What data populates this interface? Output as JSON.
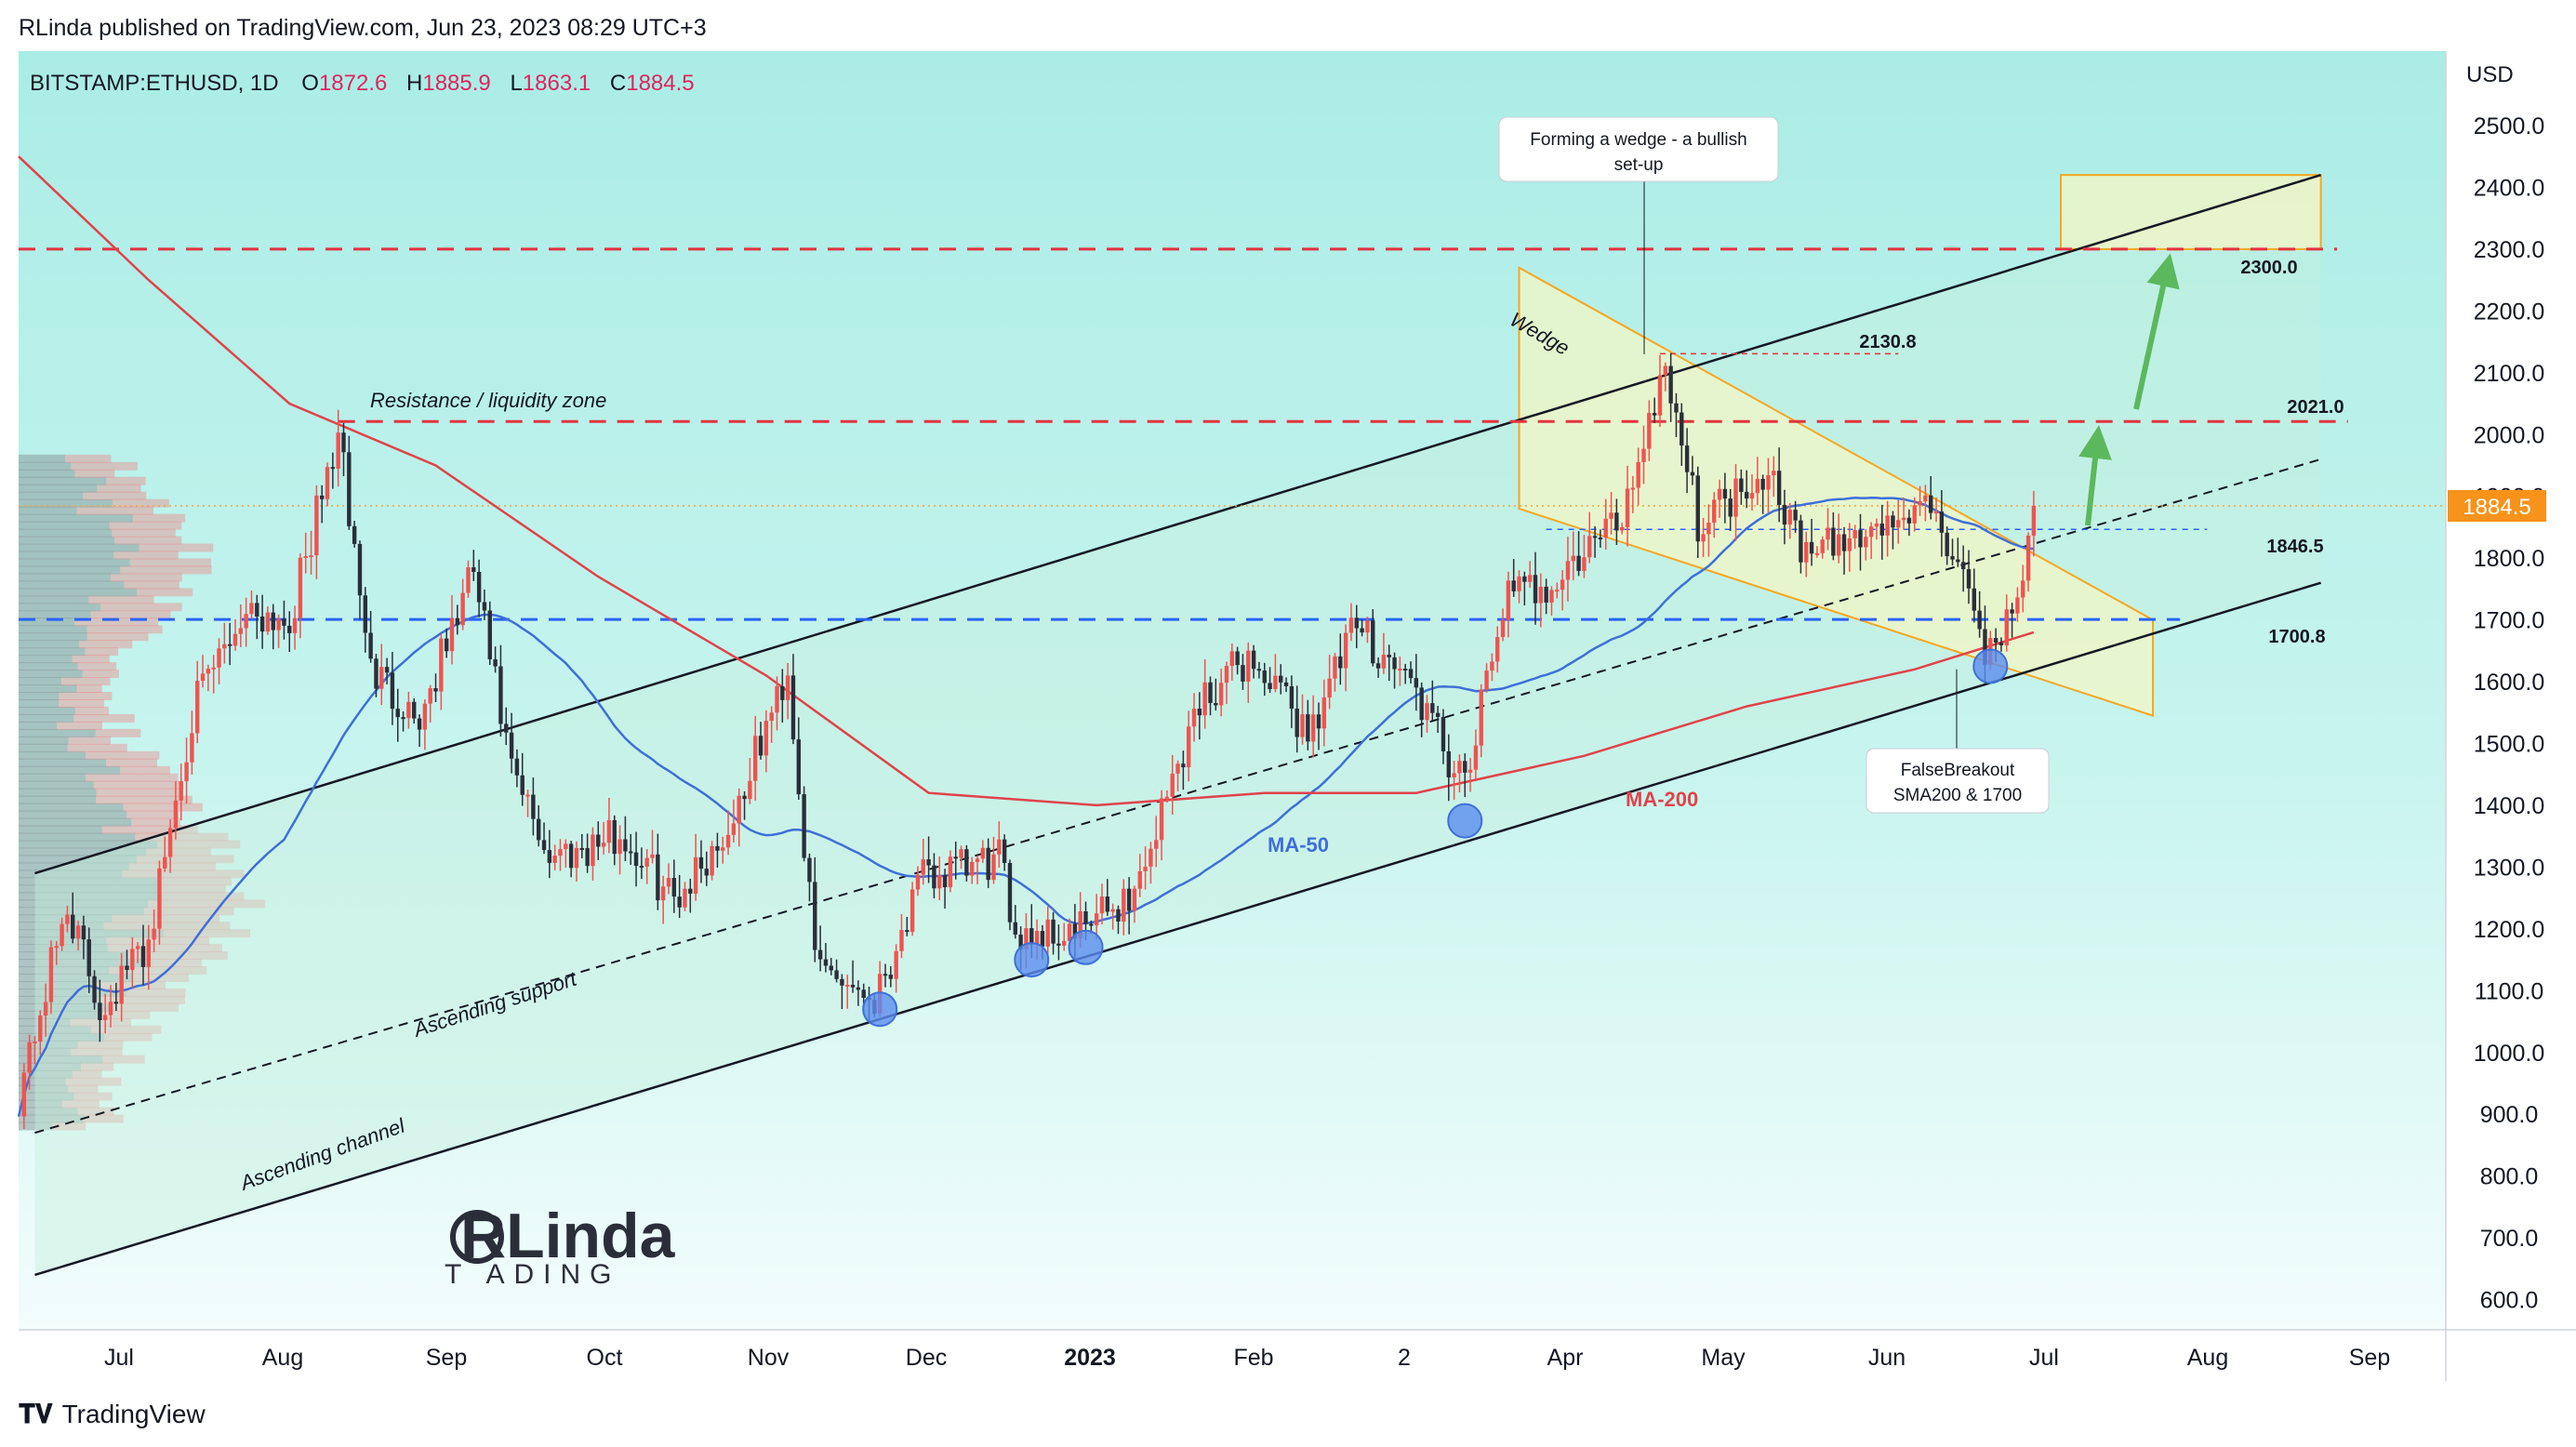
{
  "header": {
    "publisher": "RLinda published on TradingView.com, Jun 23, 2023 08:29 UTC+3"
  },
  "footer": {
    "brand": "TradingView"
  },
  "watermark": {
    "top": "RLinda",
    "bottom": "T  ADING"
  },
  "symbol": {
    "name": "BITSTAMP:ETHUSD, 1D",
    "o_label": "O",
    "o": "1872.6",
    "h_label": "H",
    "h": "1885.9",
    "l_label": "L",
    "l": "1863.1",
    "c_label": "C",
    "c": "1884.5"
  },
  "colors": {
    "up": "#ef5350",
    "down": "#2a2e39",
    "resistance": "#e3323f",
    "support": "#2962ff",
    "ma50": "#3f6fd8",
    "ma200": "#e0434b",
    "wedge": "#f5a623",
    "price_tag": "#f7931a",
    "arrow": "#5cb85c"
  },
  "chart_data": {
    "type": "candlestick",
    "title": "",
    "currency": "USD",
    "last_price": "1884.5",
    "ylim": [
      550,
      2560
    ],
    "y_ticks": [
      "2500.0",
      "2400.0",
      "2300.0",
      "2200.0",
      "2100.0",
      "2000.0",
      "1900.0",
      "1800.0",
      "1700.0",
      "1600.0",
      "1500.0",
      "1400.0",
      "1300.0",
      "1200.0",
      "1100.0",
      "1000.0",
      "900.0",
      "800.0",
      "700.0",
      "600.0"
    ],
    "x_ticks": [
      "Jul",
      "Aug",
      "Sep",
      "Oct",
      "Nov",
      "Dec",
      "2023",
      "Feb",
      "2",
      "Apr",
      "May",
      "Jun",
      "Jul",
      "Aug",
      "Sep"
    ],
    "levels": [
      {
        "label": "2300.0",
        "value": 2300,
        "style": "red-dash"
      },
      {
        "label": "2021.0",
        "value": 2021,
        "style": "red-dash"
      },
      {
        "label": "1846.5",
        "value": 1846.5,
        "style": "blue-dot"
      },
      {
        "label": "1700.8",
        "value": 1700.8,
        "style": "blue-dash"
      },
      {
        "label": "2130.8",
        "value": 2130.8,
        "style": "red-dot"
      }
    ],
    "annotations": {
      "resistance_zone": "Resistance / liquidity zone",
      "wedge": "Wedge",
      "wedge_callout": [
        "Forming a wedge - a bullish",
        "set-up"
      ],
      "false_breakout": [
        "FalseBreakout",
        "SMA200 & 1700"
      ],
      "ma50": "MA-50",
      "ma200": "MA-200",
      "asc_support": "Ascending support",
      "asc_channel": "Ascending channel"
    },
    "price_path": [
      [
        "2022-06-18",
        1000
      ],
      [
        "2022-06-25",
        1240
      ],
      [
        "2022-07-01",
        1070
      ],
      [
        "2022-07-10",
        1180
      ],
      [
        "2022-07-18",
        1550
      ],
      [
        "2022-07-28",
        1720
      ],
      [
        "2022-08-05",
        1700
      ],
      [
        "2022-08-14",
        2000
      ],
      [
        "2022-08-20",
        1620
      ],
      [
        "2022-08-29",
        1540
      ],
      [
        "2022-09-08",
        1780
      ],
      [
        "2022-09-15",
        1450
      ],
      [
        "2022-09-22",
        1320
      ],
      [
        "2022-10-05",
        1350
      ],
      [
        "2022-10-15",
        1250
      ],
      [
        "2022-10-25",
        1360
      ],
      [
        "2022-11-05",
        1620
      ],
      [
        "2022-11-10",
        1150
      ],
      [
        "2022-11-21",
        1090
      ],
      [
        "2022-11-30",
        1280
      ],
      [
        "2022-12-14",
        1310
      ],
      [
        "2022-12-17",
        1200
      ],
      [
        "2022-12-28",
        1190
      ],
      [
        "2023-01-08",
        1260
      ],
      [
        "2023-01-20",
        1570
      ],
      [
        "2023-01-29",
        1640
      ],
      [
        "2023-02-09",
        1520
      ],
      [
        "2023-02-18",
        1690
      ],
      [
        "2023-02-28",
        1600
      ],
      [
        "2023-03-10",
        1420
      ],
      [
        "2023-03-17",
        1730
      ],
      [
        "2023-03-28",
        1770
      ],
      [
        "2023-04-08",
        1870
      ],
      [
        "2023-04-16",
        2120
      ],
      [
        "2023-04-22",
        1860
      ],
      [
        "2023-05-05",
        1950
      ],
      [
        "2023-05-12",
        1800
      ],
      [
        "2023-05-28",
        1860
      ],
      [
        "2023-06-05",
        1880
      ],
      [
        "2023-06-10",
        1750
      ],
      [
        "2023-06-15",
        1640
      ],
      [
        "2023-06-20",
        1740
      ],
      [
        "2023-06-23",
        1884.5
      ]
    ]
  }
}
